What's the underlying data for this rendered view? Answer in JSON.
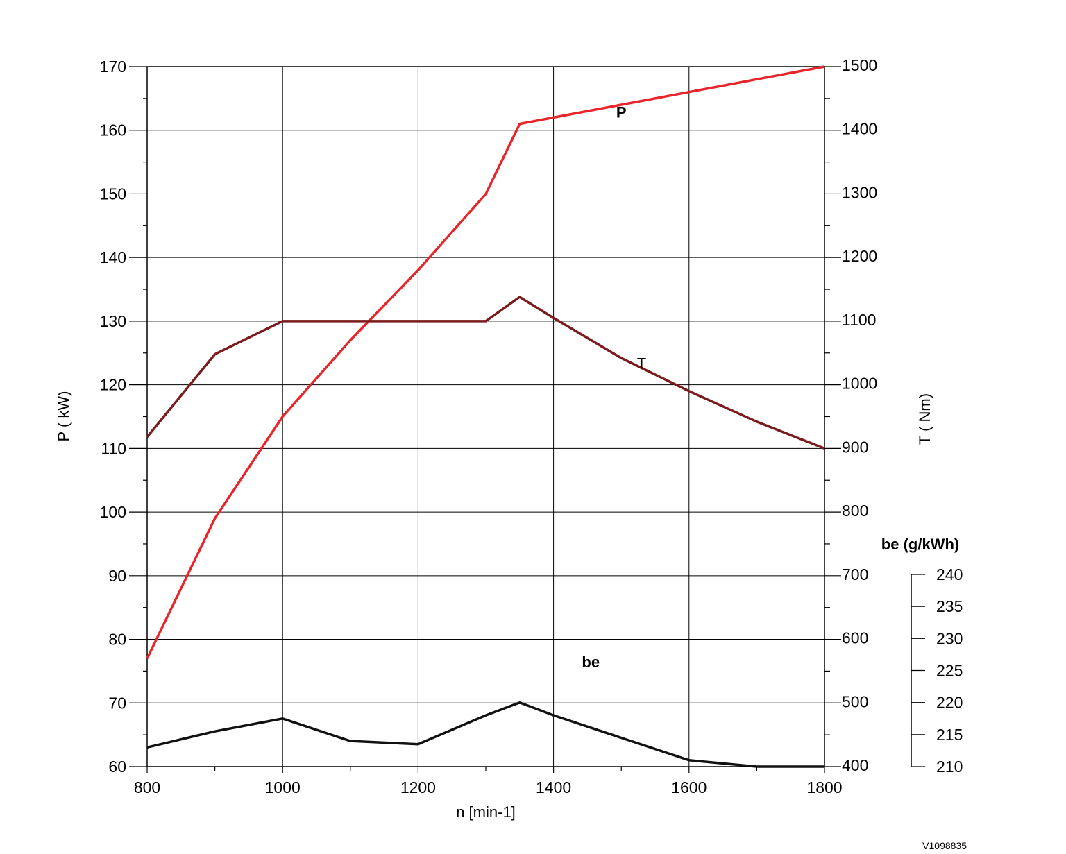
{
  "figure_code": "V1098835",
  "chart_data": {
    "type": "line",
    "x_axis": {
      "label": "n [min-1]",
      "range": [
        800,
        1800
      ],
      "major_ticks": [
        800,
        1000,
        1200,
        1400,
        1600,
        1800
      ],
      "minor_step": 100
    },
    "axes": {
      "power": {
        "label": "P ( kW)",
        "side": "left",
        "range": [
          60,
          170
        ],
        "major_ticks": [
          60,
          70,
          80,
          90,
          100,
          110,
          120,
          130,
          140,
          150,
          160,
          170
        ]
      },
      "torque": {
        "label": "T ( Nm)",
        "side": "right",
        "range": [
          400,
          1500
        ],
        "major_ticks": [
          400,
          500,
          600,
          700,
          800,
          900,
          1000,
          1100,
          1200,
          1300,
          1400,
          1500
        ]
      },
      "bsfc": {
        "label": "be (g/kWh)",
        "side": "far-right",
        "range": [
          210,
          240
        ],
        "major_ticks": [
          210,
          215,
          220,
          225,
          230,
          235,
          240
        ]
      }
    },
    "grid": true,
    "series": [
      {
        "name": "P",
        "axis": "power",
        "color": "#e8252a",
        "label_bold": true,
        "label_at": [
          1500,
          162
        ],
        "x": [
          800,
          900,
          1000,
          1100,
          1200,
          1300,
          1350,
          1400,
          1500,
          1600,
          1700,
          1800
        ],
        "values": [
          77,
          99,
          115,
          127,
          138,
          150,
          161,
          162,
          164,
          166,
          168,
          170
        ]
      },
      {
        "name": "T",
        "axis": "torque",
        "color": "#7a1b1d",
        "label_bold": false,
        "label_at": [
          1530,
          1025
        ],
        "x": [
          800,
          900,
          1000,
          1100,
          1200,
          1300,
          1350,
          1400,
          1500,
          1600,
          1700,
          1800
        ],
        "values": [
          918,
          1048,
          1100,
          1100,
          1100,
          1100,
          1138,
          1105,
          1042,
          990,
          942,
          900
        ]
      },
      {
        "name": "be",
        "axis": "bsfc",
        "color": "#111111",
        "label_bold": true,
        "label_at": [
          1455,
          225.5
        ],
        "x": [
          800,
          900,
          1000,
          1100,
          1200,
          1300,
          1350,
          1400,
          1500,
          1600,
          1700,
          1800
        ],
        "values": [
          213,
          215.5,
          217.5,
          214,
          213.5,
          218,
          220,
          218,
          214.5,
          211,
          210,
          210
        ]
      }
    ]
  }
}
